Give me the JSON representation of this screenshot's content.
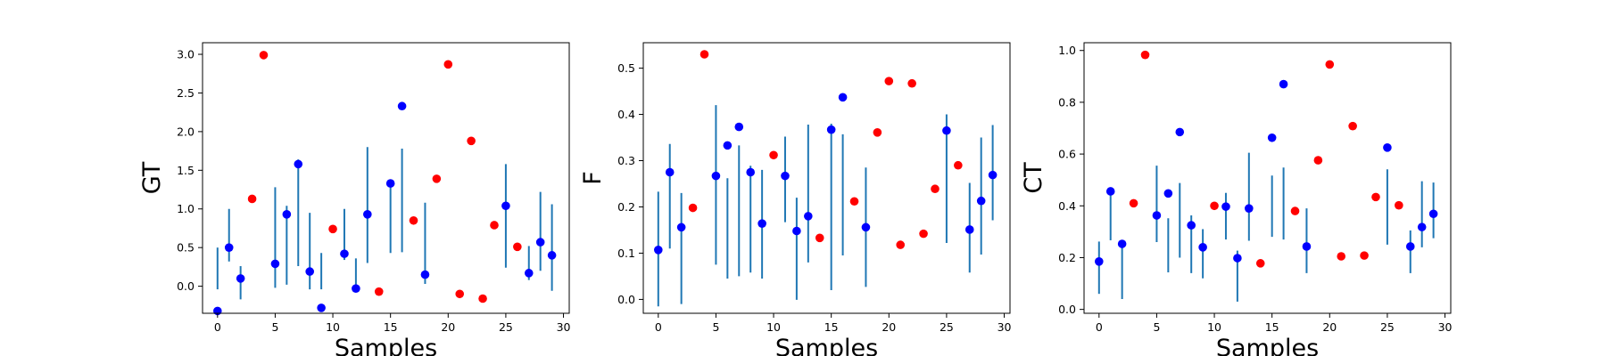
{
  "colors": {
    "in_bounds": "#0000ff",
    "out_of_bounds": "#ff0000",
    "errorbar": "#1f77b4"
  },
  "chart_data": [
    {
      "type": "scatter",
      "title": "",
      "xlabel": "Samples",
      "ylabel": "GT",
      "xlim": [
        -1.3,
        30.5
      ],
      "ylim": [
        -0.35,
        3.15
      ],
      "xticks": [
        0,
        5,
        10,
        15,
        20,
        25,
        30
      ],
      "yticks": [
        0.0,
        0.5,
        1.0,
        1.5,
        2.0,
        2.5,
        3.0
      ],
      "ytick_labels": [
        "0.0",
        "0.5",
        "1.0",
        "1.5",
        "2.0",
        "2.5",
        "3.0"
      ],
      "grid": false,
      "x": [
        0,
        1,
        2,
        3,
        4,
        5,
        6,
        7,
        8,
        9,
        10,
        11,
        12,
        13,
        14,
        15,
        16,
        17,
        18,
        19,
        20,
        21,
        22,
        23,
        24,
        25,
        26,
        27,
        28,
        29
      ],
      "y": [
        -0.32,
        0.5,
        0.1,
        1.13,
        2.99,
        0.29,
        0.93,
        1.58,
        0.19,
        -0.28,
        0.74,
        0.42,
        -0.03,
        0.93,
        -0.07,
        1.33,
        2.33,
        0.85,
        0.15,
        1.39,
        2.87,
        -0.1,
        1.88,
        -0.16,
        0.79,
        1.04,
        0.51,
        0.17,
        0.57,
        0.4
      ],
      "interval_low": [
        -0.04,
        0.32,
        -0.17,
        null,
        null,
        -0.02,
        0.02,
        0.26,
        -0.04,
        -0.04,
        null,
        0.34,
        -0.07,
        0.3,
        null,
        0.43,
        0.44,
        null,
        0.03,
        null,
        null,
        null,
        null,
        null,
        null,
        0.24,
        null,
        0.08,
        0.2,
        -0.06
      ],
      "interval_high": [
        0.5,
        1.0,
        0.26,
        null,
        null,
        1.28,
        1.04,
        1.64,
        0.95,
        0.43,
        null,
        1.0,
        0.36,
        1.8,
        null,
        1.35,
        1.78,
        null,
        1.08,
        null,
        null,
        null,
        null,
        null,
        null,
        1.58,
        null,
        0.52,
        1.22,
        1.06
      ],
      "point_color": [
        "blue",
        "blue",
        "blue",
        "red",
        "red",
        "blue",
        "blue",
        "blue",
        "blue",
        "blue",
        "red",
        "blue",
        "blue",
        "blue",
        "red",
        "blue",
        "blue",
        "red",
        "blue",
        "red",
        "red",
        "red",
        "red",
        "red",
        "red",
        "blue",
        "red",
        "blue",
        "blue",
        "blue"
      ]
    },
    {
      "type": "scatter",
      "title": "",
      "xlabel": "Samples",
      "ylabel": "F",
      "xlim": [
        -1.3,
        30.5
      ],
      "ylim": [
        -0.03,
        0.555
      ],
      "xticks": [
        0,
        5,
        10,
        15,
        20,
        25,
        30
      ],
      "yticks": [
        0.0,
        0.1,
        0.2,
        0.3,
        0.4,
        0.5
      ],
      "ytick_labels": [
        "0.0",
        "0.1",
        "0.2",
        "0.3",
        "0.4",
        "0.5"
      ],
      "grid": false,
      "x": [
        0,
        1,
        2,
        3,
        4,
        5,
        6,
        7,
        8,
        9,
        10,
        11,
        12,
        13,
        14,
        15,
        16,
        17,
        18,
        19,
        20,
        21,
        22,
        23,
        24,
        25,
        26,
        27,
        28,
        29
      ],
      "y": [
        0.107,
        0.275,
        0.156,
        0.198,
        0.53,
        0.267,
        0.333,
        0.373,
        0.275,
        0.164,
        0.312,
        0.267,
        0.148,
        0.18,
        0.133,
        0.367,
        0.437,
        0.212,
        0.156,
        0.361,
        0.472,
        0.118,
        0.467,
        0.142,
        0.239,
        0.365,
        0.29,
        0.151,
        0.213,
        0.269
      ],
      "interval_low": [
        -0.015,
        0.11,
        -0.01,
        null,
        null,
        0.075,
        0.045,
        0.05,
        0.058,
        0.045,
        null,
        0.167,
        -0.001,
        0.08,
        null,
        0.02,
        0.095,
        null,
        0.027,
        null,
        null,
        null,
        null,
        null,
        null,
        0.122,
        null,
        0.058,
        0.097,
        0.171
      ],
      "interval_high": [
        0.233,
        0.336,
        0.23,
        null,
        null,
        0.42,
        0.262,
        0.333,
        0.289,
        0.28,
        null,
        0.352,
        0.22,
        0.378,
        null,
        0.38,
        0.357,
        null,
        0.285,
        null,
        null,
        null,
        null,
        null,
        null,
        0.4,
        null,
        0.252,
        0.35,
        0.377
      ],
      "point_color": [
        "blue",
        "blue",
        "blue",
        "red",
        "red",
        "blue",
        "blue",
        "blue",
        "blue",
        "blue",
        "red",
        "blue",
        "blue",
        "blue",
        "red",
        "blue",
        "blue",
        "red",
        "blue",
        "red",
        "red",
        "red",
        "red",
        "red",
        "red",
        "blue",
        "red",
        "blue",
        "blue",
        "blue"
      ]
    },
    {
      "type": "scatter",
      "title": "",
      "xlabel": "Samples",
      "ylabel": "CT",
      "xlim": [
        -1.3,
        30.5
      ],
      "ylim": [
        -0.015,
        1.03
      ],
      "xticks": [
        0,
        5,
        10,
        15,
        20,
        25,
        30
      ],
      "yticks": [
        0.0,
        0.2,
        0.4,
        0.6,
        0.8,
        1.0
      ],
      "ytick_labels": [
        "0.0",
        "0.2",
        "0.4",
        "0.6",
        "0.8",
        "1.0"
      ],
      "grid": false,
      "x": [
        0,
        1,
        2,
        3,
        4,
        5,
        6,
        7,
        8,
        9,
        10,
        11,
        12,
        13,
        14,
        15,
        16,
        17,
        18,
        19,
        20,
        21,
        22,
        23,
        24,
        25,
        26,
        27,
        28,
        29
      ],
      "y": [
        0.185,
        0.456,
        0.253,
        0.41,
        0.983,
        0.363,
        0.448,
        0.685,
        0.325,
        0.24,
        0.4,
        0.397,
        0.198,
        0.39,
        0.178,
        0.663,
        0.87,
        0.38,
        0.243,
        0.576,
        0.946,
        0.205,
        0.708,
        0.208,
        0.434,
        0.625,
        0.402,
        0.243,
        0.318,
        0.369
      ],
      "interval_low": [
        0.06,
        0.267,
        0.04,
        null,
        null,
        0.26,
        0.143,
        0.2,
        0.14,
        0.12,
        null,
        0.27,
        0.03,
        0.265,
        null,
        0.28,
        0.27,
        null,
        0.14,
        null,
        null,
        null,
        null,
        null,
        null,
        0.25,
        null,
        0.14,
        0.24,
        0.275
      ],
      "interval_high": [
        0.262,
        0.46,
        0.262,
        null,
        null,
        0.555,
        0.352,
        0.488,
        0.363,
        0.31,
        null,
        0.45,
        0.227,
        0.605,
        null,
        0.517,
        0.548,
        null,
        0.39,
        null,
        null,
        null,
        null,
        null,
        null,
        0.541,
        null,
        0.305,
        0.495,
        0.49
      ],
      "point_color": [
        "blue",
        "blue",
        "blue",
        "red",
        "red",
        "blue",
        "blue",
        "blue",
        "blue",
        "blue",
        "red",
        "blue",
        "blue",
        "blue",
        "red",
        "blue",
        "blue",
        "red",
        "blue",
        "red",
        "red",
        "red",
        "red",
        "red",
        "red",
        "blue",
        "red",
        "blue",
        "blue",
        "blue"
      ]
    }
  ]
}
